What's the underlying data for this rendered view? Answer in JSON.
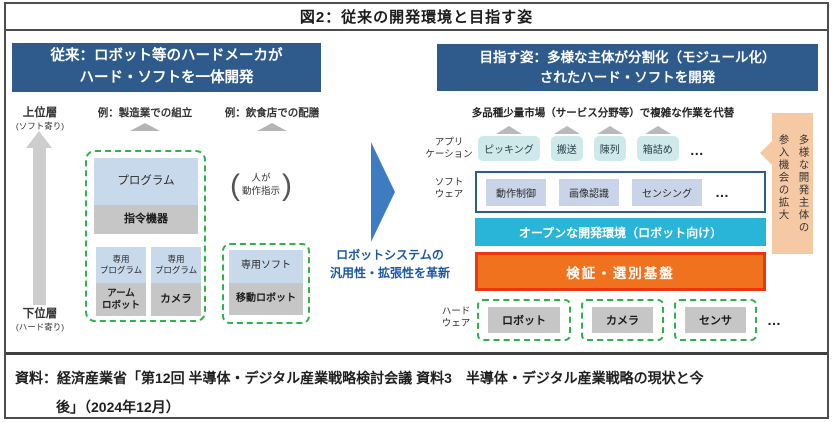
{
  "title": "図2：従来の開発環境と目指す姿",
  "source": {
    "line1": "資料：経済産業省「第12回 半導体・デジタル産業戦略検討会議 資料3　半導体・デジタル産業戦略の現状と今",
    "line2": "後」（2024年12月）"
  },
  "legacy": {
    "banner": "従来：ロボット等のハードメーカが\nハード・ソフトを一体開発",
    "axis": {
      "top": "上位層",
      "top_sub": "(ソフト寄り)",
      "bottom": "下位層",
      "bottom_sub": "(ハード寄り)"
    },
    "example_manufacturing": "例：製造業での組立",
    "example_restaurant": "例：飲食店での配膳",
    "factory_stack": {
      "program": "プログラム",
      "commander": "指令機器",
      "sub_left_top": "専用\nプログラム",
      "sub_left_bottom": "アーム\nロボット",
      "sub_right_top": "専用\nプログラム",
      "sub_right_bottom": "カメラ"
    },
    "human_note": "人が\n動作指示",
    "mobile_stack": {
      "top": "専用ソフト",
      "bottom": "移動ロボット"
    }
  },
  "transition": {
    "caption": "ロボットシステムの\n汎用性・拡張性を革新"
  },
  "target": {
    "banner": "目指す姿：多様な主体が分割化（モジュール化）\nされたハード・ソフトを開発",
    "market_note": "多品種少量市場（サービス分野等）で複雑な作業を代替",
    "application": {
      "label": "アプリ\nケーション",
      "items": [
        "ピッキング",
        "搬送",
        "陳列",
        "箱詰め"
      ],
      "more": "…"
    },
    "software": {
      "label": "ソフト\nウェア",
      "items": [
        "動作制御",
        "画像認識",
        "センシング"
      ],
      "more": "…"
    },
    "open_env": "オープンな開発環境（ロボット向け）",
    "verification": "検証・選別基盤",
    "hardware": {
      "label": "ハード\nウェア",
      "items": [
        "ロボット",
        "カメラ",
        "センサ"
      ],
      "more": "…"
    },
    "bubble": "多様な開発主体の\n参入機会の拡大"
  },
  "colors": {
    "banner_blue": "#2e5a8c",
    "light_blue": "#c8d9ec",
    "gray_box": "#c6c6c6",
    "dashed_green": "#2eb34a",
    "app_teal": "#cfe8e9",
    "software_blue": "#c9d4e8",
    "cyan_bar": "#29b5d8",
    "orange_fill": "#f0711e",
    "orange_border": "#e8380c",
    "peach": "#f5c9a4",
    "arrow_blue": "#3d7cc0",
    "accent_text": "#1b57a5"
  }
}
